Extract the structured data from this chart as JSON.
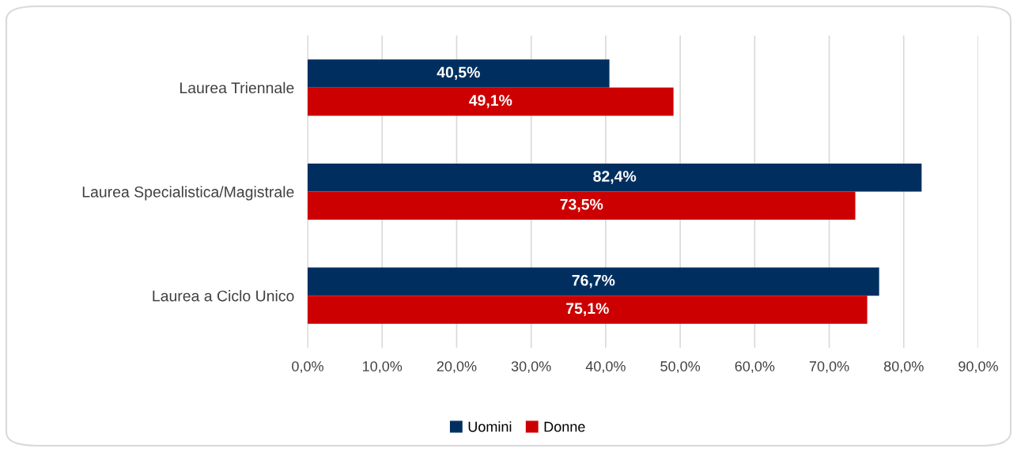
{
  "chart_data": {
    "type": "bar",
    "orientation": "horizontal",
    "categories": [
      "Laurea Triennale",
      "Laurea Specialistica/Magistrale",
      "Laurea a Ciclo Unico"
    ],
    "series": [
      {
        "name": "Uomini",
        "color": "#002f5f",
        "values": [
          40.5,
          82.4,
          76.7
        ],
        "value_labels": [
          "40,5%",
          "82,4%",
          "76,7%"
        ]
      },
      {
        "name": "Donne",
        "color": "#cc0000",
        "values": [
          49.1,
          73.5,
          75.1
        ],
        "value_labels": [
          "49,1%",
          "73,5%",
          "75,1%"
        ]
      }
    ],
    "xlim": [
      0,
      90
    ],
    "xticks": [
      {
        "value": 0,
        "label": "0,0%"
      },
      {
        "value": 10,
        "label": "10,0%"
      },
      {
        "value": 20,
        "label": "20,0%"
      },
      {
        "value": 30,
        "label": "30,0%"
      },
      {
        "value": 40,
        "label": "40,0%"
      },
      {
        "value": 50,
        "label": "50,0%"
      },
      {
        "value": 60,
        "label": "60,0%"
      },
      {
        "value": 70,
        "label": "70,0%"
      },
      {
        "value": 80,
        "label": "80,0%"
      },
      {
        "value": 90,
        "label": "90,0%"
      }
    ],
    "grid": "x",
    "legend": "bottom"
  }
}
